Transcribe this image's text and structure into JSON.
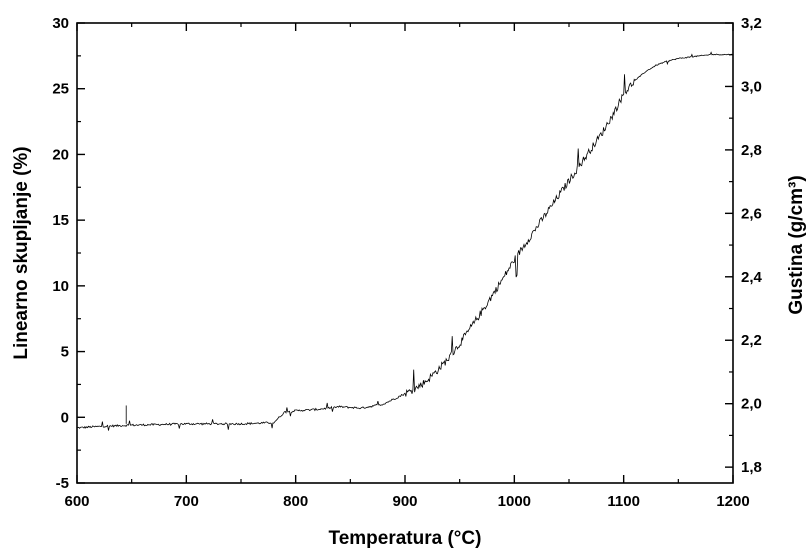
{
  "chart_data": {
    "type": "line",
    "title": "",
    "xlabel": "Temperatura",
    "xlabel_unit": "(°C)",
    "ylabel": "Linearno skupljanje (%)",
    "y2label": "Gustina",
    "y2label_unit": "(g/cm³)",
    "xlim": [
      600,
      1200
    ],
    "ylim": [
      -5,
      30
    ],
    "y2lim": [
      1.75,
      3.2
    ],
    "x_ticks": [
      "600",
      "700",
      "800",
      "900",
      "1000",
      "1100",
      "1200"
    ],
    "y_ticks": [
      "-5",
      "0",
      "5",
      "10",
      "15",
      "20",
      "25",
      "30"
    ],
    "y2_ticks": [
      "1,8",
      "2,0",
      "2,2",
      "2,4",
      "2,6",
      "2,8",
      "3,0",
      "3,2"
    ],
    "grid": false,
    "legend": "none",
    "series": [
      {
        "x": [
          600,
          620,
          650,
          700,
          750,
          780,
          790,
          800,
          820,
          840,
          860,
          880,
          900,
          910,
          920,
          930,
          940,
          950,
          960,
          970,
          980,
          990,
          1000,
          1010,
          1020,
          1030,
          1040,
          1050,
          1060,
          1070,
          1080,
          1090,
          1100,
          1110,
          1120,
          1130,
          1140,
          1150,
          1160,
          1170,
          1180,
          1190,
          1200
        ],
        "y": [
          -0.8,
          -0.7,
          -0.6,
          -0.5,
          -0.5,
          -0.4,
          0.4,
          0.5,
          0.6,
          0.8,
          0.7,
          1.0,
          1.8,
          2.2,
          2.8,
          3.6,
          4.5,
          5.6,
          6.8,
          8.0,
          9.3,
          10.6,
          12.0,
          13.2,
          14.4,
          15.6,
          16.8,
          18.0,
          19.2,
          20.4,
          21.6,
          23.0,
          24.6,
          25.6,
          26.3,
          26.8,
          27.1,
          27.3,
          27.4,
          27.5,
          27.6,
          27.6,
          27.6
        ]
      }
    ]
  }
}
